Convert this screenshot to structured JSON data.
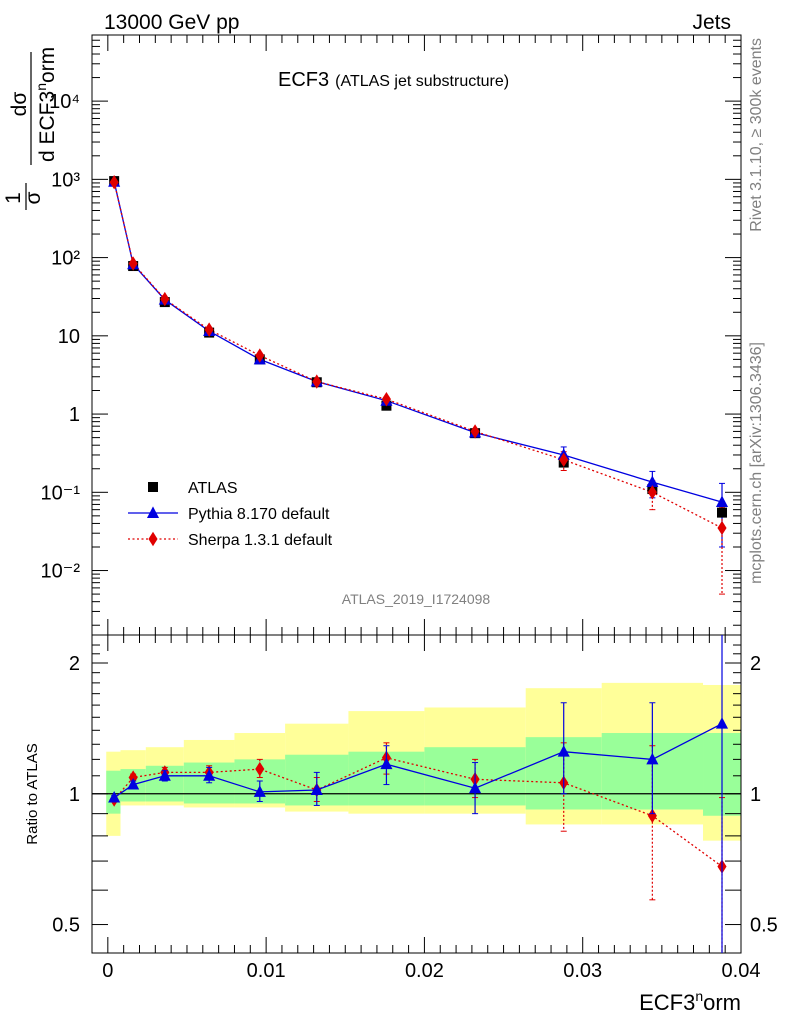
{
  "header": {
    "left": "13000 GeV pp",
    "right": "Jets"
  },
  "title": {
    "main": "ECF3",
    "sub": "(ATLAS jet substructure)"
  },
  "side": {
    "rivet": "Rivet 3.1.10, ≥ 300k events",
    "mcplots": "mcplots.cern.ch [arXiv:1306.3436]"
  },
  "analysis_id": "ATLAS_2019_I1724098",
  "ylabel_main": {
    "frac_num": "1",
    "frac_den": "σ",
    "d_num": "dσ",
    "d_den": "d ECF3",
    "sup": "n",
    "tail": "orm"
  },
  "ylabel_ratio": "Ratio to ATLAS",
  "xlabel": {
    "base": "ECF3",
    "sup": "n",
    "tail": "orm"
  },
  "colors": {
    "atlas": "#000000",
    "pythia": "#0000e0",
    "sherpa": "#e00000",
    "band_inner": "#99ff99",
    "band_outer": "#ffff99"
  },
  "legend": [
    {
      "label": "ATLAS",
      "marker": "square"
    },
    {
      "label": "Pythia 8.170 default",
      "marker": "triangle"
    },
    {
      "label": "Sherpa 1.3.1 default",
      "marker": "diamond"
    }
  ],
  "chart_data": [
    {
      "type": "scatter",
      "panel": "main",
      "yscale": "log",
      "xlim": [
        -0.001,
        0.04
      ],
      "ylim": [
        0.0015,
        70000
      ],
      "x_ticks": [
        "0",
        "0.01",
        "0.02",
        "0.03",
        "0.04"
      ],
      "y_ticks": [
        "10⁻²",
        "10⁻¹",
        "1",
        "10",
        "10²",
        "10³",
        "10⁴"
      ],
      "series": [
        {
          "name": "ATLAS",
          "x": [
            0.0004,
            0.0016,
            0.0036,
            0.0064,
            0.0096,
            0.0132,
            0.0176,
            0.0232,
            0.0288,
            0.0344,
            0.0388
          ],
          "y": [
            950,
            78,
            27,
            11,
            5.0,
            2.55,
            1.28,
            0.57,
            0.24,
            0.11,
            0.055
          ]
        },
        {
          "name": "Pythia 8.170 default",
          "x": [
            0.0004,
            0.0016,
            0.0036,
            0.0064,
            0.0096,
            0.0132,
            0.0176,
            0.0232,
            0.0288,
            0.0344,
            0.0388
          ],
          "y": [
            930,
            82,
            29,
            11.5,
            5.0,
            2.6,
            1.48,
            0.58,
            0.3,
            0.135,
            0.075
          ],
          "err": [
            0,
            0,
            0,
            0,
            0,
            0,
            0,
            0,
            0.08,
            0.05,
            0.055
          ]
        },
        {
          "name": "Sherpa 1.3.1 default",
          "x": [
            0.0004,
            0.0016,
            0.0036,
            0.0064,
            0.0096,
            0.0132,
            0.0176,
            0.0232,
            0.0288,
            0.0344,
            0.0388
          ],
          "y": [
            920,
            84,
            29.5,
            12,
            5.6,
            2.6,
            1.55,
            0.6,
            0.26,
            0.1,
            0.035
          ],
          "err": [
            0,
            0,
            0,
            0,
            0,
            0,
            0.1,
            0,
            0.07,
            0.04,
            0.03
          ]
        }
      ]
    },
    {
      "type": "scatter",
      "panel": "ratio",
      "yscale": "log",
      "ylabel": "Ratio to ATLAS",
      "xlabel": "ECF3norm",
      "xlim": [
        -0.001,
        0.04
      ],
      "ylim": [
        0.43,
        2.32
      ],
      "y_ticks": [
        "0.5",
        "1",
        "2"
      ],
      "bins": [
        -0.0001,
        0.0008,
        0.0024,
        0.0048,
        0.008,
        0.0112,
        0.0152,
        0.02,
        0.0264,
        0.0312,
        0.0376,
        0.04
      ],
      "band_outer": [
        [
          0.8,
          1.25
        ],
        [
          0.94,
          1.26
        ],
        [
          0.94,
          1.28
        ],
        [
          0.93,
          1.33
        ],
        [
          0.93,
          1.38
        ],
        [
          0.91,
          1.45
        ],
        [
          0.9,
          1.55
        ],
        [
          0.9,
          1.58
        ],
        [
          0.85,
          1.75
        ],
        [
          0.85,
          1.8
        ],
        [
          0.78,
          1.78
        ]
      ],
      "band_inner": [
        [
          0.9,
          1.13
        ],
        [
          0.96,
          1.14
        ],
        [
          0.96,
          1.16
        ],
        [
          0.95,
          1.18
        ],
        [
          0.95,
          1.2
        ],
        [
          0.94,
          1.23
        ],
        [
          0.94,
          1.25
        ],
        [
          0.94,
          1.28
        ],
        [
          0.92,
          1.35
        ],
        [
          0.92,
          1.38
        ],
        [
          0.89,
          1.38
        ]
      ],
      "series": [
        {
          "name": "Pythia 8.170 default",
          "x": [
            0.0004,
            0.0016,
            0.0036,
            0.0064,
            0.0096,
            0.0132,
            0.0176,
            0.0232,
            0.0288,
            0.0344,
            0.0388
          ],
          "y": [
            0.98,
            1.05,
            1.1,
            1.1,
            1.01,
            1.02,
            1.17,
            1.03,
            1.25,
            1.2,
            1.45
          ],
          "err_lo": [
            0.01,
            0.02,
            0.03,
            0.04,
            0.05,
            0.08,
            0.12,
            0.13,
            0.25,
            0.3,
            1.1
          ],
          "err_hi": [
            0.01,
            0.02,
            0.03,
            0.05,
            0.06,
            0.1,
            0.12,
            0.15,
            0.37,
            0.42,
            0.9
          ]
        },
        {
          "name": "Sherpa 1.3.1 default",
          "x": [
            0.0004,
            0.0016,
            0.0036,
            0.0064,
            0.0096,
            0.0132,
            0.0176,
            0.0232,
            0.0288,
            0.0344,
            0.0388
          ],
          "y": [
            0.97,
            1.09,
            1.12,
            1.12,
            1.14,
            1.02,
            1.21,
            1.08,
            1.06,
            0.89,
            0.68
          ],
          "err_lo": [
            0.01,
            0.02,
            0.03,
            0.04,
            0.05,
            0.06,
            0.1,
            0.1,
            0.24,
            0.32,
            0.34
          ],
          "err_hi": [
            0.01,
            0.02,
            0.03,
            0.04,
            0.06,
            0.07,
            0.1,
            0.12,
            0.25,
            0.4,
            0.3
          ]
        }
      ]
    }
  ]
}
